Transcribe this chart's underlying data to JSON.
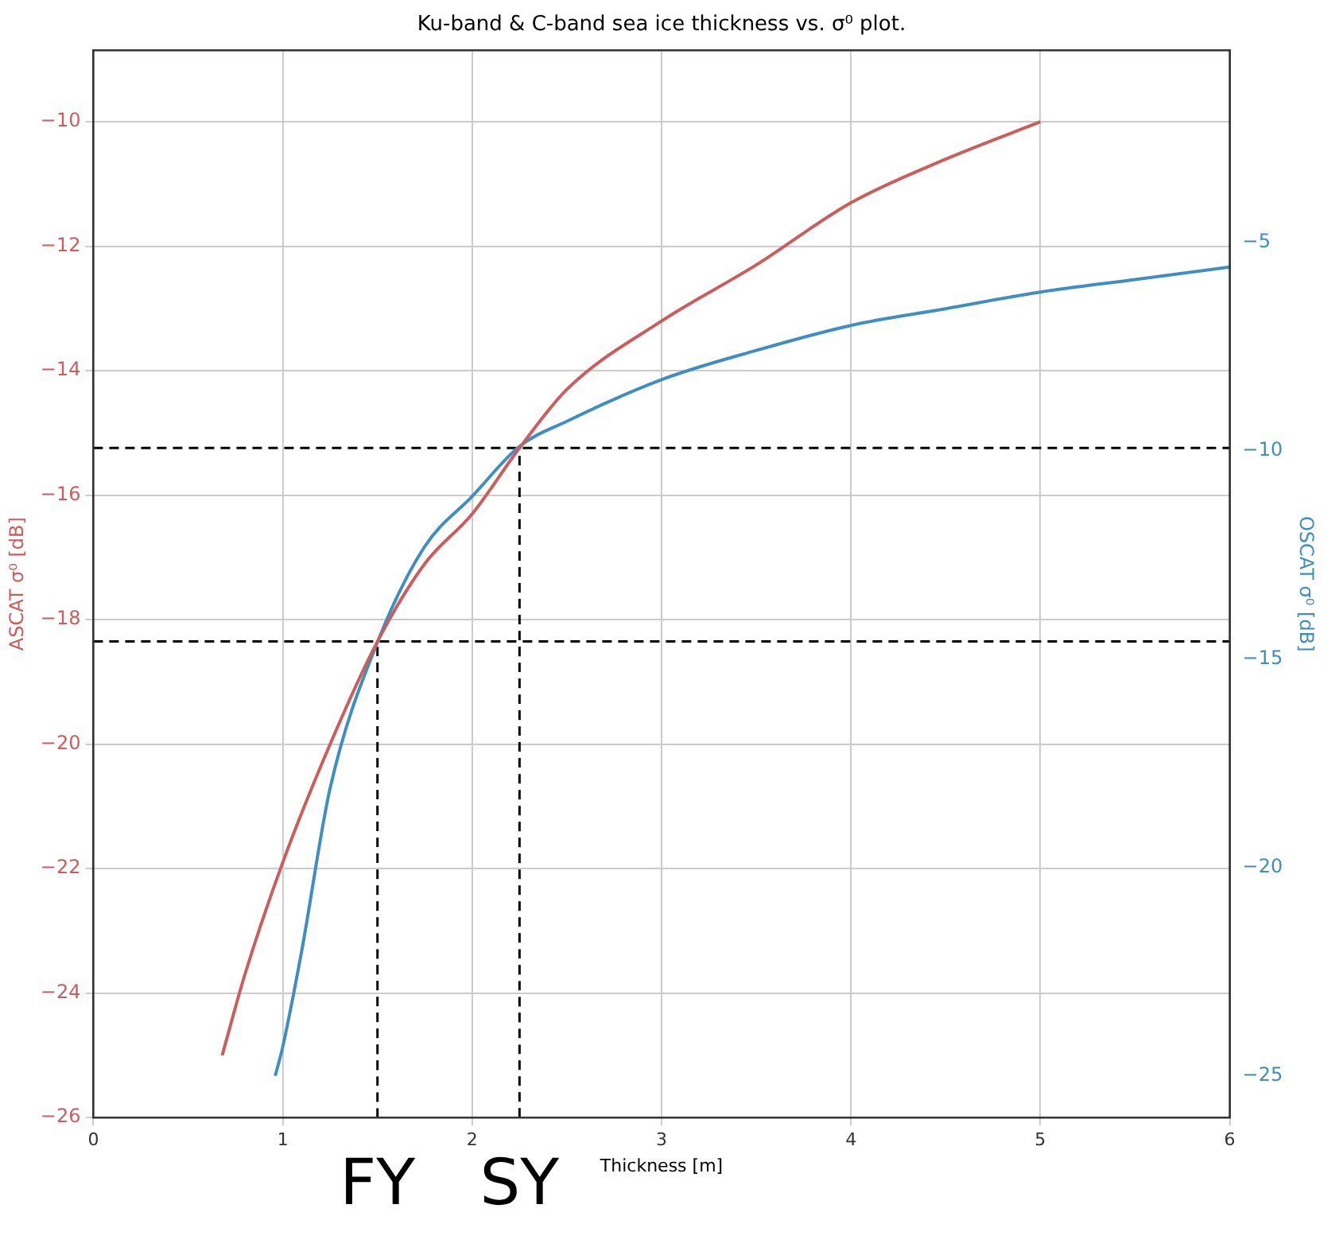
{
  "chart_data": {
    "type": "line",
    "title": "Ku-band & C-band sea ice thickness vs. σ⁰ plot.",
    "xlabel": "Thickness [m]",
    "ylabel": "ASCAT σ⁰ [dB]",
    "y2label": "OSCAT σ⁰ [dB]",
    "xlim": [
      0,
      6
    ],
    "xticks": [
      0,
      1,
      2,
      3,
      4,
      5,
      6
    ],
    "ylim": [
      -26,
      -8.85
    ],
    "yticks": [
      -26,
      -24,
      -22,
      -20,
      -18,
      -16,
      -14,
      -12,
      -10
    ],
    "y2lim": [
      -26,
      -0.4
    ],
    "y2ticks": [
      -25,
      -20,
      -15,
      -10,
      -5
    ],
    "grid": true,
    "legend": false,
    "marker": "none",
    "series": [
      {
        "color": "#cd5c5c",
        "x": [
          0.68,
          0.8,
          1,
          1.25,
          1.5,
          1.75,
          2,
          2.25,
          2.5,
          3,
          3.5,
          4,
          4.5,
          5
        ],
        "values": [
          -25.0,
          -23.7,
          -21.9,
          -20.0,
          -18.35,
          -17.1,
          -16.3,
          -15.24,
          -14.3,
          -13.2,
          -12.3,
          -11.3,
          -10.6,
          -10.0
        ]
      },
      {
        "color": "#3f8ec2",
        "axis": "y2",
        "x": [
          0.96,
          1,
          1.1,
          1.25,
          1.5,
          1.75,
          2,
          2.25,
          2.5,
          3,
          3.5,
          4,
          4.5,
          5,
          5.5,
          6
        ],
        "values": [
          -25.0,
          -24.3,
          -22.0,
          -18.1,
          -14.6,
          -12.3,
          -11.1,
          -9.9,
          -9.3,
          -8.3,
          -7.6,
          -7.0,
          -6.6,
          -6.2,
          -5.9,
          -5.6
        ]
      },
      {
        "color": "#000000",
        "line_style": "dashed",
        "x": [
          1.5,
          1.5
        ],
        "values": [
          -26,
          -18.35
        ]
      },
      {
        "color": "#000000",
        "line_style": "dashed",
        "x": [
          2.25,
          2.25
        ],
        "values": [
          -26,
          -15.24
        ]
      }
    ],
    "ref_lines": [
      {
        "axis": "y",
        "value": -18.35,
        "color": "#000000",
        "line_style": "dashed"
      },
      {
        "axis": "y",
        "value": -15.24,
        "color": "#000000",
        "line_style": "dashed"
      }
    ],
    "annotations": [
      {
        "text": "FY",
        "x": 1.5,
        "y": -26
      },
      {
        "text": "SY",
        "x": 2.25,
        "y": -26
      }
    ]
  }
}
